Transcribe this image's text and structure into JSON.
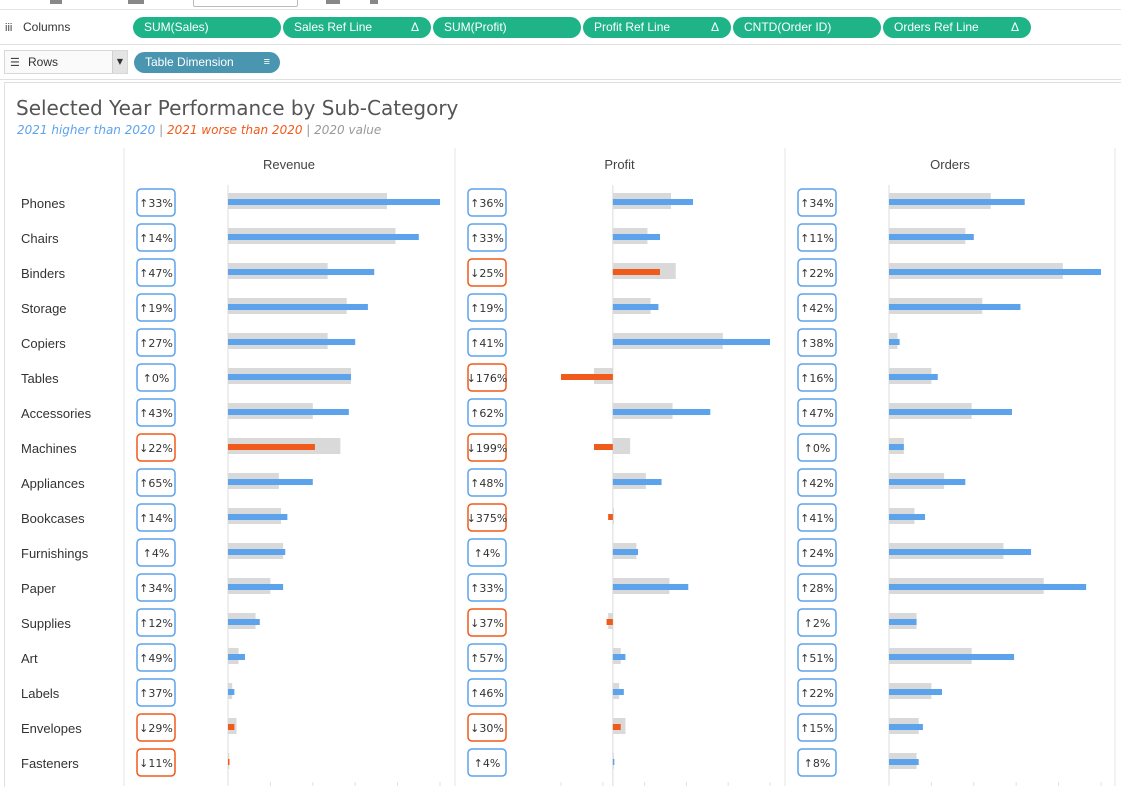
{
  "shelves": {
    "columns": {
      "label": "Columns",
      "icon": "columns-icon",
      "pills": [
        {
          "label": "SUM(Sales)",
          "delta": ""
        },
        {
          "label": "Sales Ref Line",
          "delta": "Δ"
        },
        {
          "label": "SUM(Profit)",
          "delta": ""
        },
        {
          "label": "Profit Ref Line",
          "delta": "Δ"
        },
        {
          "label": "CNTD(Order ID)",
          "delta": ""
        },
        {
          "label": "Orders Ref Line",
          "delta": "Δ"
        }
      ]
    },
    "rows": {
      "label": "Rows",
      "icon": "rows-icon",
      "pills": [
        {
          "label": "Table Dimension",
          "sort_icon": "sort-icon"
        }
      ]
    }
  },
  "colors": {
    "higher": "#5da3ec",
    "worse": "#f05a1a",
    "prior": "#d9d9d9",
    "pill_green": "#1fb487",
    "pill_blue": "#4a95b0"
  },
  "chart_data": {
    "type": "bar",
    "title": "Selected Year Performance by Sub-Category",
    "subtitle": {
      "higher": "2021 higher than 2020",
      "sep1": " | ",
      "worse": "2021 worse than 2020",
      "sep2": " | ",
      "prior": "2020 value"
    },
    "categories": [
      "Phones",
      "Chairs",
      "Binders",
      "Storage",
      "Copiers",
      "Tables",
      "Accessories",
      "Machines",
      "Appliances",
      "Bookcases",
      "Furnishings",
      "Paper",
      "Supplies",
      "Art",
      "Labels",
      "Envelopes",
      "Fasteners"
    ],
    "panels": [
      {
        "title": "Revenue",
        "xlim": [
          0,
          1.0
        ],
        "current": [
          1.0,
          0.9,
          0.69,
          0.66,
          0.6,
          0.58,
          0.57,
          0.41,
          0.4,
          0.28,
          0.27,
          0.26,
          0.15,
          0.08,
          0.03,
          0.03,
          0.005
        ],
        "prior": [
          0.75,
          0.79,
          0.47,
          0.56,
          0.47,
          0.58,
          0.4,
          0.53,
          0.24,
          0.25,
          0.26,
          0.2,
          0.13,
          0.05,
          0.02,
          0.04,
          0.006
        ],
        "change_labels": [
          "↑33%",
          "↑14%",
          "↑47%",
          "↑19%",
          "↑27%",
          "↑0%",
          "↑43%",
          "↓22%",
          "↑65%",
          "↑14%",
          "↑4%",
          "↑34%",
          "↑12%",
          "↑49%",
          "↑37%",
          "↓29%",
          "↓11%"
        ],
        "direction": [
          "up",
          "up",
          "up",
          "up",
          "up",
          "up",
          "up",
          "down",
          "up",
          "up",
          "up",
          "up",
          "up",
          "up",
          "up",
          "down",
          "down"
        ]
      },
      {
        "title": "Profit",
        "xlim": [
          -0.33,
          1.0
        ],
        "current": [
          0.51,
          0.3,
          0.3,
          0.29,
          1.0,
          -0.33,
          0.62,
          -0.12,
          0.31,
          -0.03,
          0.16,
          0.48,
          -0.04,
          0.08,
          0.07,
          0.05,
          0.005
        ],
        "prior": [
          0.37,
          0.22,
          0.4,
          0.24,
          0.7,
          -0.12,
          0.38,
          0.11,
          0.21,
          0.007,
          0.15,
          0.36,
          -0.03,
          0.05,
          0.04,
          0.08,
          0.004
        ],
        "change_labels": [
          "↑36%",
          "↑33%",
          "↓25%",
          "↑19%",
          "↑41%",
          "↓176%",
          "↑62%",
          "↓199%",
          "↑48%",
          "↓375%",
          "↑4%",
          "↑33%",
          "↓37%",
          "↑57%",
          "↑46%",
          "↓30%",
          "↑4%"
        ],
        "direction": [
          "up",
          "up",
          "down",
          "up",
          "up",
          "down",
          "up",
          "down",
          "up",
          "down",
          "up",
          "up",
          "down",
          "up",
          "up",
          "down",
          "up"
        ]
      },
      {
        "title": "Orders",
        "xlim": [
          0,
          1.0
        ],
        "current": [
          0.64,
          0.4,
          1.0,
          0.62,
          0.05,
          0.23,
          0.58,
          0.07,
          0.36,
          0.17,
          0.67,
          0.93,
          0.13,
          0.59,
          0.25,
          0.16,
          0.14
        ],
        "prior": [
          0.48,
          0.36,
          0.82,
          0.44,
          0.04,
          0.2,
          0.39,
          0.07,
          0.26,
          0.12,
          0.54,
          0.73,
          0.13,
          0.39,
          0.2,
          0.14,
          0.13
        ],
        "change_labels": [
          "↑34%",
          "↑11%",
          "↑22%",
          "↑42%",
          "↑38%",
          "↑16%",
          "↑47%",
          "↑0%",
          "↑42%",
          "↑41%",
          "↑24%",
          "↑28%",
          "↑2%",
          "↑51%",
          "↑22%",
          "↑15%",
          "↑8%"
        ],
        "direction": [
          "up",
          "up",
          "up",
          "up",
          "up",
          "up",
          "up",
          "up",
          "up",
          "up",
          "up",
          "up",
          "up",
          "up",
          "up",
          "up",
          "up"
        ]
      }
    ],
    "grid": false,
    "legend": "subtitle"
  }
}
